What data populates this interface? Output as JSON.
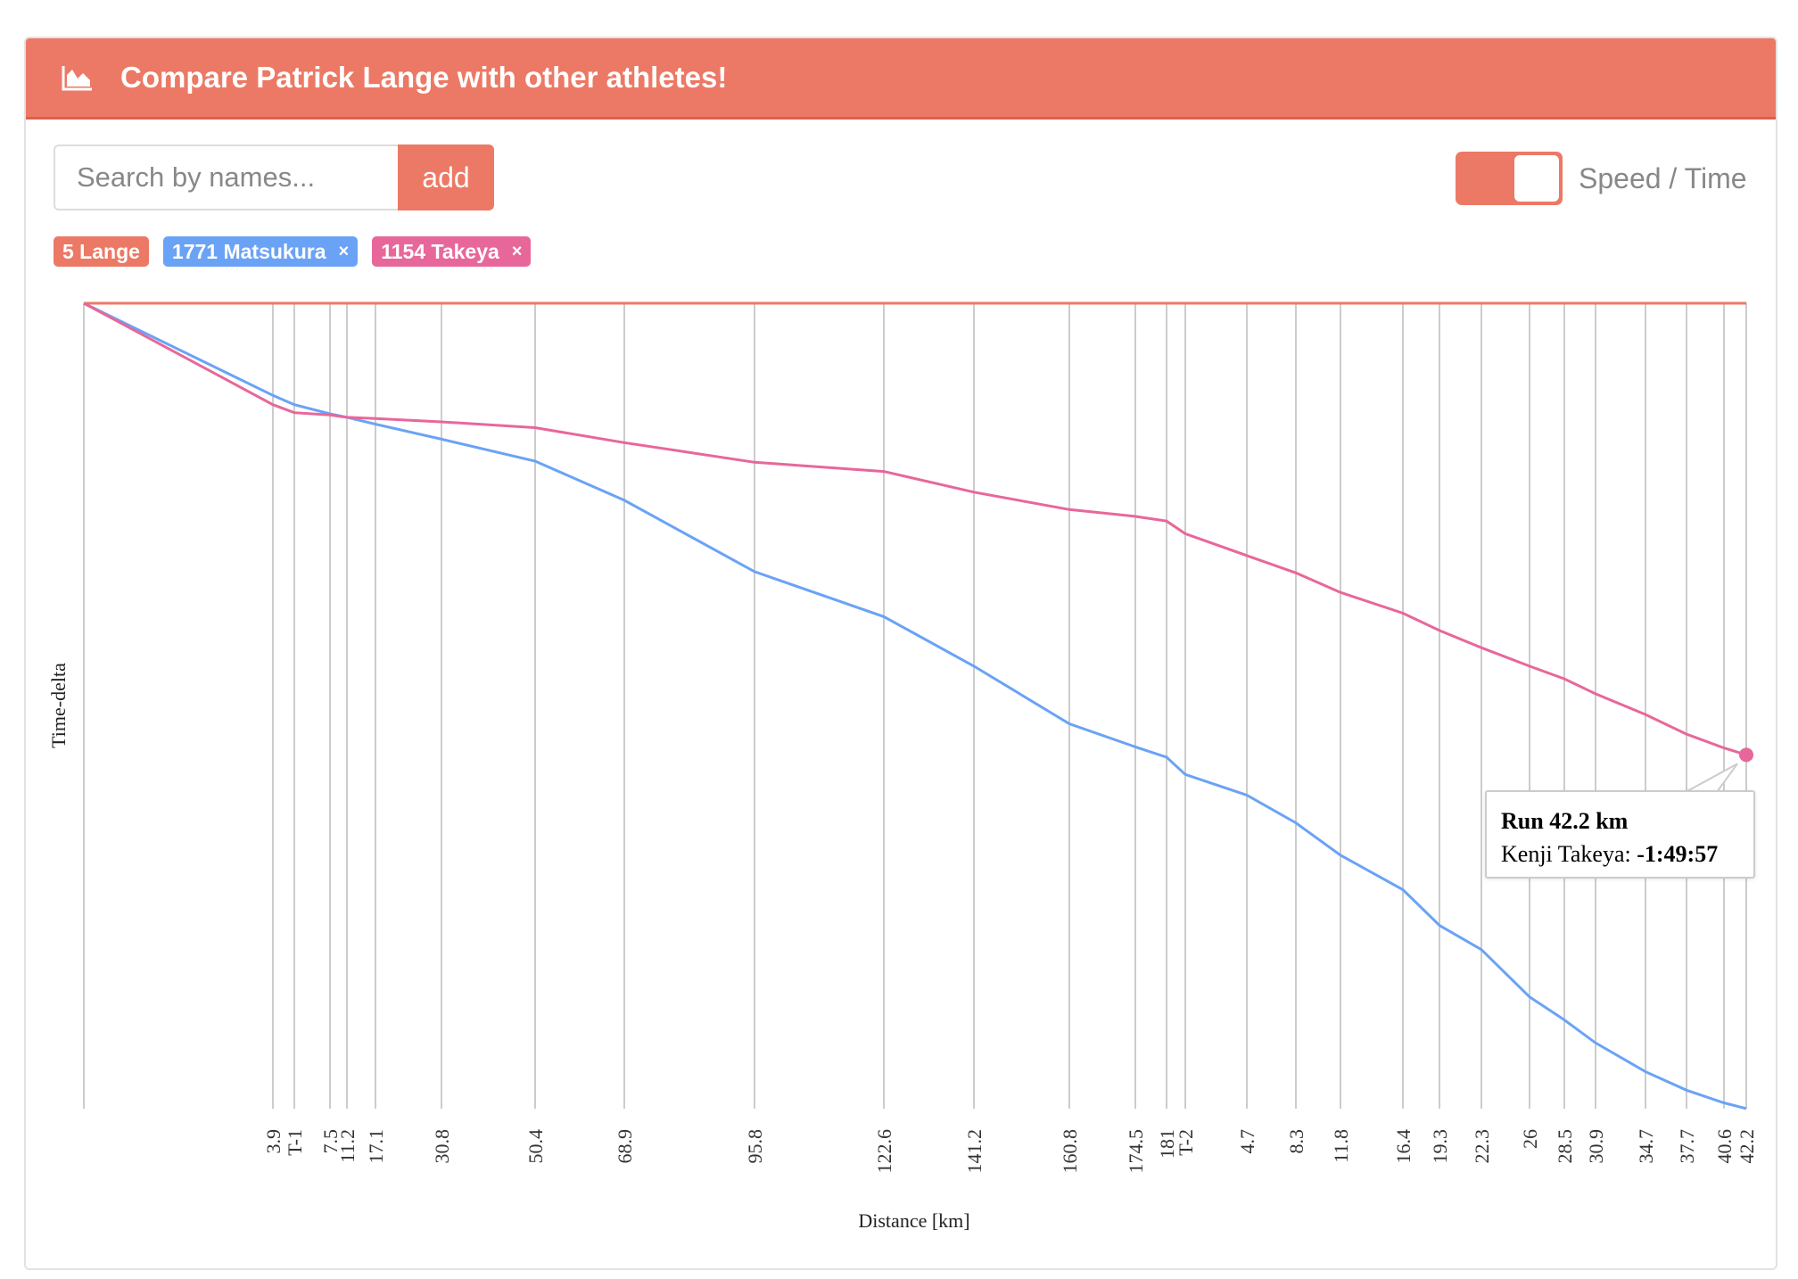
{
  "header": {
    "title": "Compare Patrick Lange with other athletes!",
    "icon": "area-chart-icon"
  },
  "search": {
    "placeholder": "Search by names...",
    "value": "",
    "add_label": "add"
  },
  "tags": [
    {
      "label": "5 Lange",
      "color": "#ec7965",
      "removable": false
    },
    {
      "label": "1771 Matsukura",
      "color": "#6aa3f5",
      "removable": true,
      "remove": "×"
    },
    {
      "label": "1154 Takeya",
      "color": "#e8679a",
      "removable": true,
      "remove": "×"
    }
  ],
  "toggle": {
    "label": "Speed / Time",
    "on": true
  },
  "tooltip": {
    "title": "Run 42.2 km",
    "name": "Kenji Takeya:",
    "value": "-1:49:57"
  },
  "chart_data": {
    "type": "line",
    "xlabel": "Distance [km]",
    "ylabel": "Time-delta",
    "categories": [
      "",
      "3.9",
      "T-1",
      "7.5",
      "11.2",
      "17.1",
      "30.8",
      "50.4",
      "68.9",
      "95.8",
      "122.6",
      "141.2",
      "160.8",
      "174.5",
      "181",
      "T-2",
      "4.7",
      "8.3",
      "11.8",
      "16.4",
      "19.3",
      "22.3",
      "26",
      "28.5",
      "30.9",
      "34.7",
      "37.7",
      "40.6",
      "42.2"
    ],
    "ylim_seconds": [
      -11765,
      0
    ],
    "grid": "vertical",
    "series": [
      {
        "name": "5 Lange",
        "color": "#ec7965",
        "values": [
          0,
          0,
          0,
          0,
          0,
          0,
          0,
          0,
          0,
          0,
          0,
          0,
          0,
          0,
          0,
          0,
          0,
          0,
          0,
          0,
          0,
          0,
          0,
          0,
          0,
          0,
          0,
          0,
          0
        ]
      },
      {
        "name": "1771 Matsukura",
        "color": "#6aa3f5",
        "values": [
          0,
          -1346,
          -1481,
          -1616,
          -1666,
          -1767,
          -1986,
          -2306,
          -2878,
          -3921,
          -4578,
          -5301,
          -6143,
          -6480,
          -6631,
          -6883,
          -7186,
          -7590,
          -8062,
          -8566,
          -9088,
          -9442,
          -10132,
          -10468,
          -10805,
          -11226,
          -11495,
          -11680,
          -11764
        ]
      },
      {
        "name": "1154 Takeya",
        "color": "#e8679a",
        "values": [
          0,
          -1481,
          -1599,
          -1633,
          -1666,
          -1683,
          -1733,
          -1818,
          -2036,
          -2323,
          -2457,
          -2760,
          -3013,
          -3114,
          -3181,
          -3366,
          -3686,
          -3938,
          -4224,
          -4527,
          -4780,
          -5032,
          -5301,
          -5487,
          -5705,
          -6008,
          -6294,
          -6496,
          -6597
        ]
      }
    ],
    "highlight": {
      "series": "1154 Takeya",
      "category": "42.2"
    }
  }
}
